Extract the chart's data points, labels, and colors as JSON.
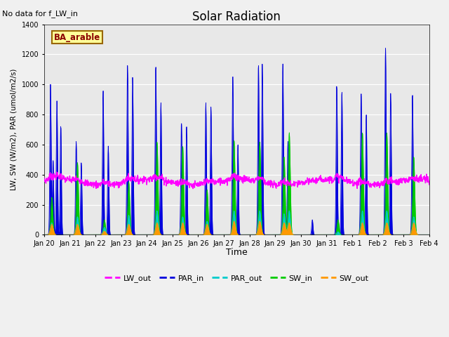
{
  "title": "Solar Radiation",
  "top_left_text": "No data for f_LW_in",
  "label_text": "BA_arable",
  "ylabel": "LW, SW (W/m2), PAR (umol/m2/s)",
  "xlabel": "Time",
  "ylim": [
    0,
    1400
  ],
  "yticks": [
    0,
    200,
    400,
    600,
    800,
    1000,
    1200,
    1400
  ],
  "colors": {
    "LW_out": "#ff00ff",
    "PAR_in": "#0000dd",
    "PAR_out": "#00cccc",
    "SW_in": "#00cc00",
    "SW_out": "#ff9900"
  },
  "xtick_labels": [
    "Jan 20",
    "Jan 21",
    "Jan 22",
    "Jan 23",
    "Jan 24",
    "Jan 25",
    "Jan 26",
    "Jan 27",
    "Jan 28",
    "Jan 29",
    "Jan 30",
    "Jan 31",
    "Feb 1",
    "Feb 2",
    "Feb 3",
    "Feb 4"
  ],
  "plot_bg": "#e8e8e8",
  "fig_bg": "#f0f0f0",
  "n_days": 16,
  "PAR_in_data": [
    [
      0.25,
      1000,
      0.025
    ],
    [
      0.35,
      500,
      0.025
    ],
    [
      0.5,
      890,
      0.025
    ],
    [
      0.65,
      730,
      0.025
    ],
    [
      1.25,
      620,
      0.025
    ],
    [
      1.45,
      480,
      0.025
    ],
    [
      2.3,
      960,
      0.025
    ],
    [
      2.5,
      590,
      0.025
    ],
    [
      3.25,
      1125,
      0.025
    ],
    [
      3.45,
      1050,
      0.025
    ],
    [
      4.35,
      1130,
      0.025
    ],
    [
      4.55,
      880,
      0.025
    ],
    [
      5.35,
      750,
      0.025
    ],
    [
      5.55,
      720,
      0.025
    ],
    [
      6.3,
      880,
      0.025
    ],
    [
      6.5,
      850,
      0.025
    ],
    [
      7.35,
      1065,
      0.025
    ],
    [
      7.55,
      600,
      0.025
    ],
    [
      8.35,
      1140,
      0.025
    ],
    [
      8.5,
      1135,
      0.025
    ],
    [
      9.3,
      1140,
      0.025
    ],
    [
      9.5,
      620,
      0.025
    ],
    [
      10.45,
      100,
      0.025
    ],
    [
      11.4,
      1000,
      0.025
    ],
    [
      11.6,
      960,
      0.025
    ],
    [
      12.35,
      950,
      0.025
    ],
    [
      12.55,
      800,
      0.025
    ],
    [
      13.3,
      1245,
      0.025
    ],
    [
      13.5,
      940,
      0.025
    ],
    [
      14.35,
      940,
      0.025
    ]
  ],
  "SW_in_data": [
    [
      0.3,
      250,
      0.04
    ],
    [
      1.3,
      480,
      0.04
    ],
    [
      2.35,
      100,
      0.04
    ],
    [
      3.3,
      350,
      0.04
    ],
    [
      4.4,
      620,
      0.04
    ],
    [
      5.4,
      590,
      0.04
    ],
    [
      6.35,
      300,
      0.04
    ],
    [
      7.4,
      630,
      0.04
    ],
    [
      8.4,
      620,
      0.04
    ],
    [
      9.35,
      520,
      0.04
    ],
    [
      9.55,
      680,
      0.04
    ],
    [
      11.45,
      100,
      0.04
    ],
    [
      12.4,
      680,
      0.04
    ],
    [
      13.35,
      680,
      0.04
    ],
    [
      14.4,
      520,
      0.04
    ]
  ],
  "SW_out_data": [
    [
      0.3,
      70,
      0.055
    ],
    [
      1.3,
      70,
      0.055
    ],
    [
      2.35,
      25,
      0.055
    ],
    [
      3.3,
      70,
      0.055
    ],
    [
      4.4,
      80,
      0.055
    ],
    [
      5.4,
      80,
      0.055
    ],
    [
      6.35,
      70,
      0.055
    ],
    [
      7.4,
      90,
      0.055
    ],
    [
      8.4,
      90,
      0.055
    ],
    [
      9.35,
      80,
      0.055
    ],
    [
      9.55,
      80,
      0.055
    ],
    [
      12.4,
      80,
      0.055
    ],
    [
      13.35,
      80,
      0.055
    ],
    [
      14.4,
      80,
      0.055
    ]
  ],
  "PAR_out_data": [
    [
      0.3,
      80,
      0.045
    ],
    [
      1.3,
      120,
      0.045
    ],
    [
      2.35,
      50,
      0.045
    ],
    [
      3.3,
      130,
      0.045
    ],
    [
      4.4,
      160,
      0.045
    ],
    [
      5.4,
      120,
      0.045
    ],
    [
      6.35,
      90,
      0.045
    ],
    [
      7.4,
      160,
      0.045
    ],
    [
      8.4,
      160,
      0.045
    ],
    [
      9.35,
      140,
      0.045
    ],
    [
      9.55,
      160,
      0.045
    ],
    [
      11.45,
      20,
      0.045
    ],
    [
      12.4,
      160,
      0.045
    ],
    [
      13.35,
      160,
      0.045
    ],
    [
      14.4,
      120,
      0.045
    ]
  ],
  "LW_out_base": 350,
  "LW_out_amp": 20,
  "LW_out_noise": 12
}
